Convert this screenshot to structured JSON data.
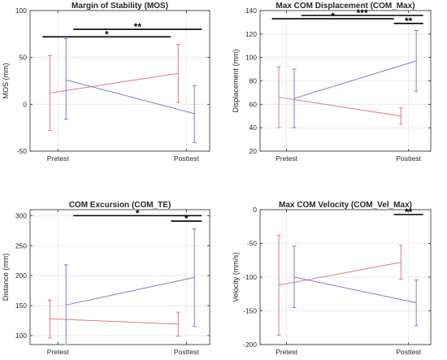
{
  "chart_data": [
    {
      "type": "line",
      "title": "Margin of Stability (MOS)",
      "ylabel": "MOS (mm)",
      "xlabel": "",
      "categories": [
        "Pretest",
        "Posttest"
      ],
      "ylim": [
        -50,
        100
      ],
      "yticks": [
        -50,
        0,
        50,
        100
      ],
      "grid": true,
      "series": [
        {
          "color": "#e07b7b",
          "values": [
            12,
            33
          ],
          "lower": [
            -28,
            2
          ],
          "upper": [
            52,
            64
          ]
        },
        {
          "color": "#7b7bd6",
          "values": [
            26,
            -10
          ],
          "lower": [
            -16,
            -41
          ],
          "upper": [
            70,
            20
          ]
        }
      ],
      "significance": [
        {
          "label": "**",
          "x1": 0.12,
          "x2": 1.12,
          "y": 80
        },
        {
          "label": "*",
          "x1": -0.12,
          "x2": 0.88,
          "y": 72
        }
      ]
    },
    {
      "type": "line",
      "title": "Max COM Displacement (COM_Max)",
      "ylabel": "Displacement (mm)",
      "xlabel": "",
      "categories": [
        "Pretest",
        "Posttest"
      ],
      "ylim": [
        20,
        140
      ],
      "yticks": [
        20,
        40,
        60,
        80,
        100,
        120,
        140
      ],
      "grid": true,
      "series": [
        {
          "color": "#e07b7b",
          "values": [
            66,
            50
          ],
          "lower": [
            40,
            43
          ],
          "upper": [
            92,
            57
          ]
        },
        {
          "color": "#7b7bd6",
          "values": [
            65,
            97
          ],
          "lower": [
            40,
            71
          ],
          "upper": [
            90,
            123
          ]
        }
      ],
      "significance": [
        {
          "label": "***",
          "x1": 0.12,
          "x2": 1.12,
          "y": 137
        },
        {
          "label": "*",
          "x1": -0.12,
          "x2": 0.88,
          "y": 133
        },
        {
          "label": "**",
          "x1": 0.88,
          "x2": 1.12,
          "y": 129
        }
      ]
    },
    {
      "type": "line",
      "title": "COM Excursion (COM_TE)",
      "ylabel": "Distance (mm)",
      "xlabel": "",
      "categories": [
        "Pretest",
        "Posttest"
      ],
      "ylim": [
        85,
        310
      ],
      "yticks": [
        100,
        150,
        200,
        250,
        300
      ],
      "grid": true,
      "series": [
        {
          "color": "#e07b7b",
          "values": [
            128,
            119
          ],
          "lower": [
            96,
            99
          ],
          "upper": [
            159,
            139
          ]
        },
        {
          "color": "#7b7bd6",
          "values": [
            151,
            197
          ],
          "lower": [
            85,
            115
          ],
          "upper": [
            218,
            278
          ]
        }
      ],
      "significance": [
        {
          "label": "*",
          "x1": 0.12,
          "x2": 1.12,
          "y": 300
        },
        {
          "label": "*",
          "x1": 0.88,
          "x2": 1.12,
          "y": 291
        }
      ]
    },
    {
      "type": "line",
      "title": "Max COM Velocity (COM_Vel_Max)",
      "ylabel": "Velocity (mm/s)",
      "xlabel": "",
      "categories": [
        "Pretest",
        "Posttest"
      ],
      "ylim": [
        -200,
        0
      ],
      "yticks": [
        -200,
        -150,
        -100,
        -50,
        0
      ],
      "grid": true,
      "series": [
        {
          "color": "#e07b7b",
          "values": [
            -112,
            -78
          ],
          "lower": [
            -186,
            -103
          ],
          "upper": [
            -38,
            -53
          ]
        },
        {
          "color": "#7b7bd6",
          "values": [
            -100,
            -138
          ],
          "lower": [
            -145,
            -172
          ],
          "upper": [
            -54,
            -104
          ]
        }
      ],
      "significance": [
        {
          "label": "**",
          "x1": 0.88,
          "x2": 1.12,
          "y": 0
        }
      ]
    }
  ]
}
